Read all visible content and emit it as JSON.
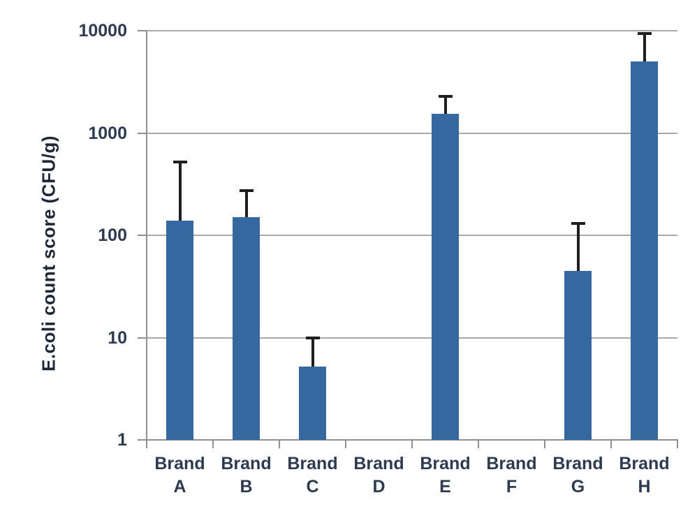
{
  "chart_data": {
    "type": "bar",
    "title": "",
    "xlabel": "",
    "ylabel": "E.coli count score (CFU/g)",
    "y_scale": "log",
    "ylim": [
      1,
      10000
    ],
    "y_ticks": [
      {
        "value": 1,
        "label": "1"
      },
      {
        "value": 10,
        "label": "10"
      },
      {
        "value": 100,
        "label": "100"
      },
      {
        "value": 1000,
        "label": "1000"
      },
      {
        "value": 10000,
        "label": "10000"
      }
    ],
    "grid": "horizontal-only",
    "legend": "none",
    "bars": [
      {
        "category": "Brand A",
        "label_line1": "Brand",
        "label_line2": "A",
        "value": 140,
        "error_high": 520
      },
      {
        "category": "Brand B",
        "label_line1": "Brand",
        "label_line2": "B",
        "value": 150,
        "error_high": 275
      },
      {
        "category": "Brand C",
        "label_line1": "Brand",
        "label_line2": "C",
        "value": 5.2,
        "error_high": 10
      },
      {
        "category": "Brand D",
        "label_line1": "Brand",
        "label_line2": "D",
        "value": 0,
        "error_high": null
      },
      {
        "category": "Brand E",
        "label_line1": "Brand",
        "label_line2": "E",
        "value": 1550,
        "error_high": 2300
      },
      {
        "category": "Brand F",
        "label_line1": "Brand",
        "label_line2": "F",
        "value": 0,
        "error_high": null
      },
      {
        "category": "Brand G",
        "label_line1": "Brand",
        "label_line2": "G",
        "value": 45,
        "error_high": 130
      },
      {
        "category": "Brand H",
        "label_line1": "Brand",
        "label_line2": "H",
        "value": 5000,
        "error_high": 9400
      }
    ],
    "colors": {
      "bar_fill": "#3668a0",
      "error_bar": "#1e1e1e",
      "gridline": "#a8a8a8",
      "axis": "#8f8f8f",
      "tick_label": "#2d3a50",
      "axis_title": "#1d2737"
    }
  }
}
